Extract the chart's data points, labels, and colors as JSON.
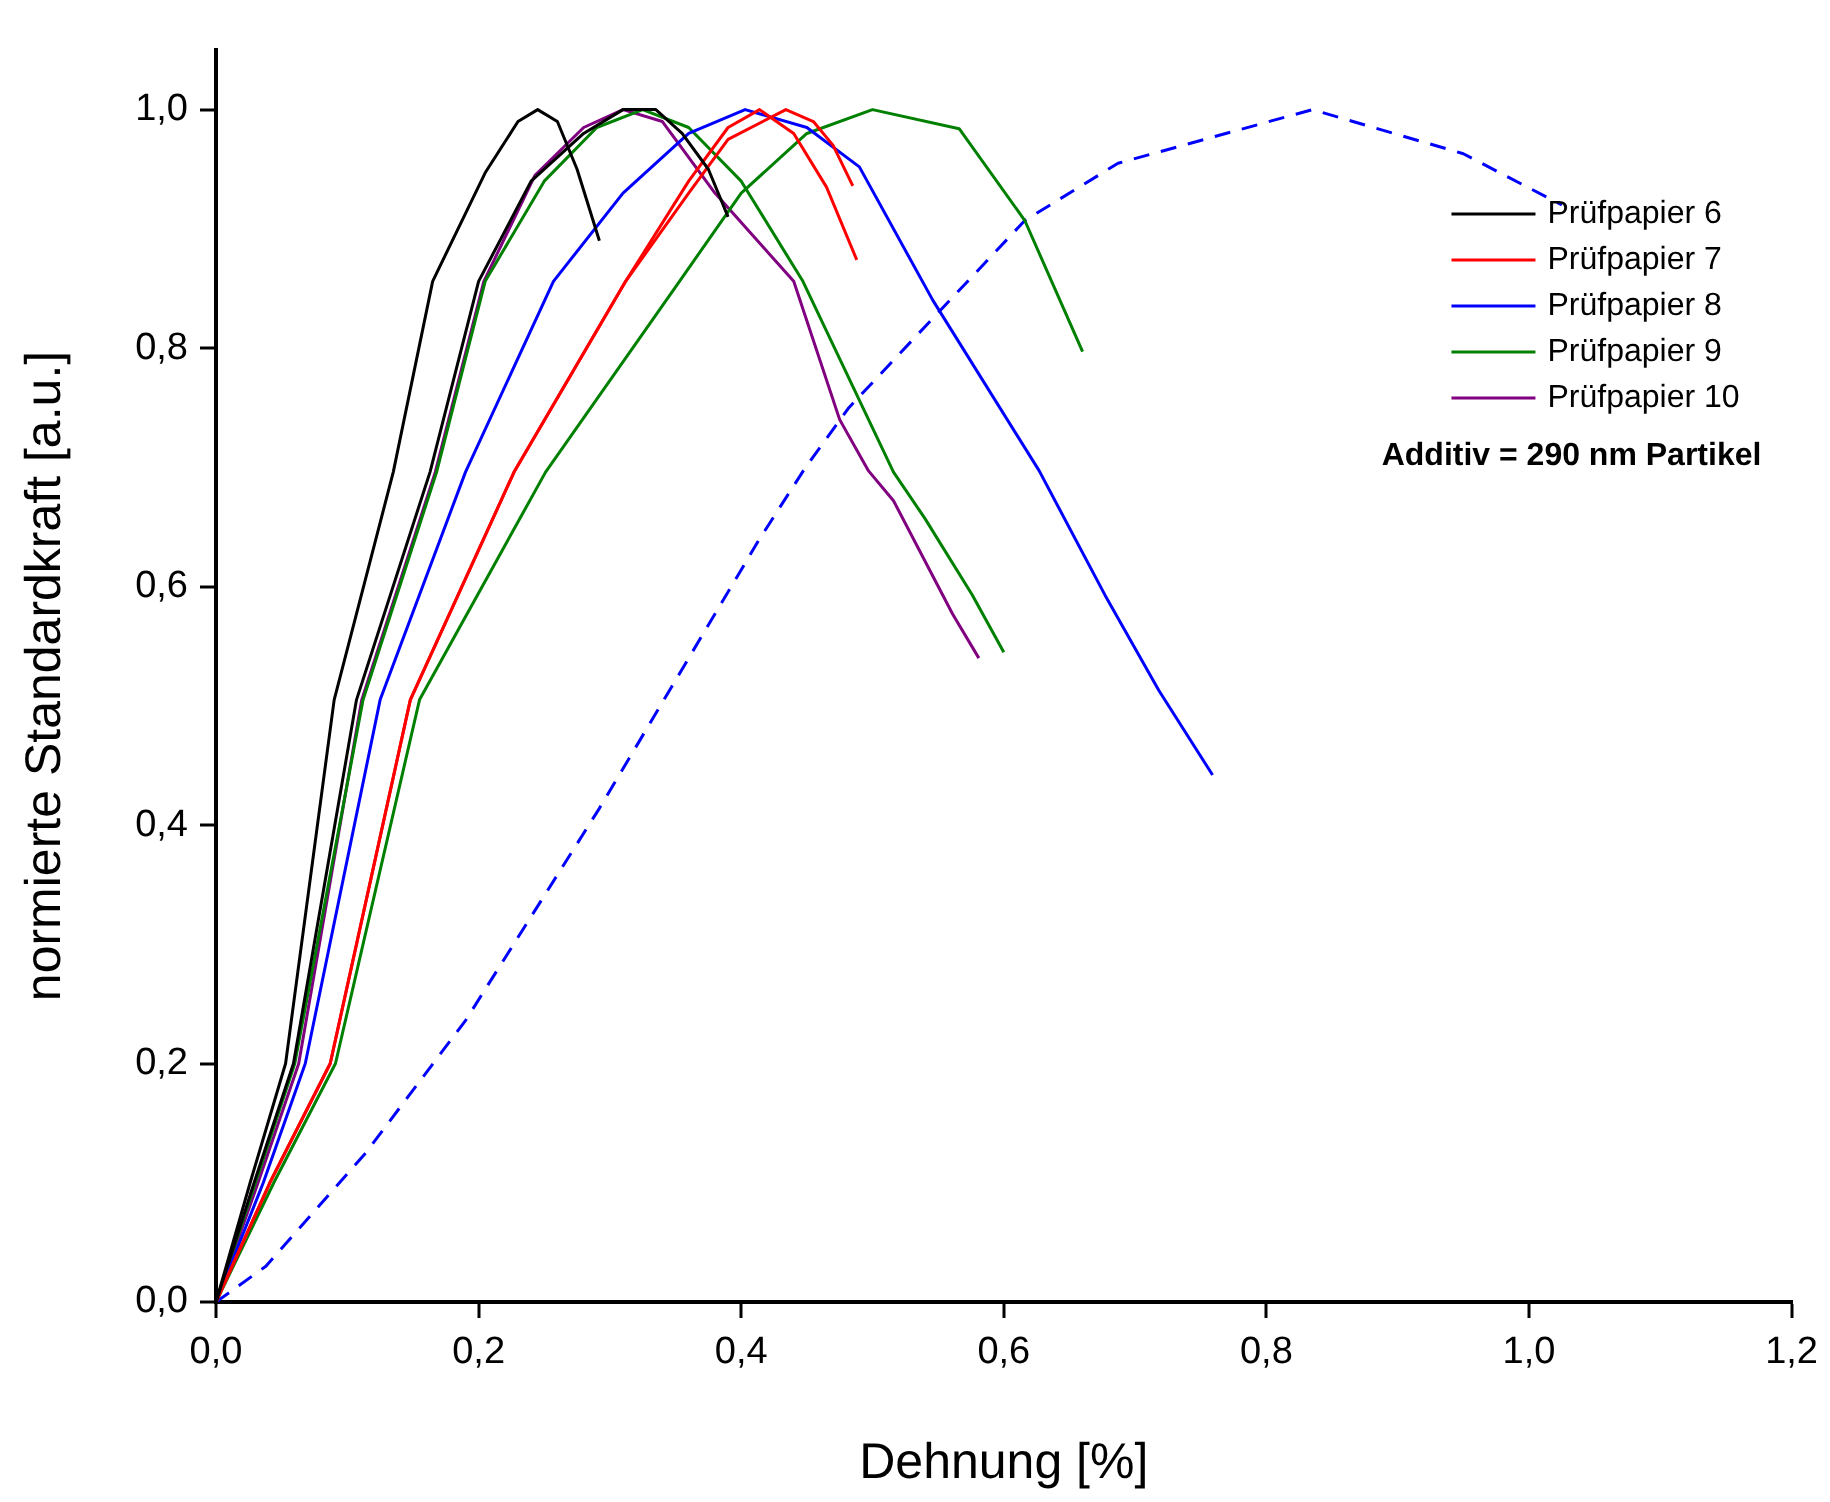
{
  "chart_data": {
    "type": "line",
    "xlabel": "Dehnung [%]",
    "ylabel": "normierte Standardkraft [a.u.]",
    "xlim": [
      0,
      1.2
    ],
    "ylim": [
      0,
      1.05
    ],
    "xticks": [
      {
        "value": 0,
        "label": "0,0"
      },
      {
        "value": 0.2,
        "label": "0,2"
      },
      {
        "value": 0.4,
        "label": "0,4"
      },
      {
        "value": 0.6,
        "label": "0,6"
      },
      {
        "value": 0.8,
        "label": "0,8"
      },
      {
        "value": 1.0,
        "label": "1,0"
      },
      {
        "value": 1.2,
        "label": "1,2"
      }
    ],
    "yticks": [
      {
        "value": 0,
        "label": "0,0"
      },
      {
        "value": 0.2,
        "label": "0,2"
      },
      {
        "value": 0.4,
        "label": "0,4"
      },
      {
        "value": 0.6,
        "label": "0,6"
      },
      {
        "value": 0.8,
        "label": "0,8"
      },
      {
        "value": 1.0,
        "label": "1,0"
      }
    ],
    "grid": false,
    "legend": "top right",
    "marker": "none",
    "line_style": "solid",
    "annotations": [
      "Additiv = 290 nm Partikel"
    ],
    "series": [
      {
        "name": "Prüfpapier 6",
        "color": "#000000",
        "x": [
          0,
          0.026,
          0.053,
          0.09,
          0.135,
          0.165,
          0.205,
          0.23,
          0.245,
          0.26,
          0.275,
          0.292
        ],
        "values": [
          0,
          0.1,
          0.2,
          0.505,
          0.696,
          0.856,
          0.947,
          0.99,
          1.0,
          0.99,
          0.95,
          0.89
        ]
      },
      {
        "color": "#000000",
        "x": [
          0,
          0.029,
          0.059,
          0.107,
          0.163,
          0.2,
          0.24,
          0.28,
          0.31,
          0.335,
          0.355,
          0.375,
          0.39
        ],
        "values": [
          0,
          0.1,
          0.2,
          0.505,
          0.696,
          0.856,
          0.94,
          0.98,
          1.0,
          1.0,
          0.98,
          0.95,
          0.91
        ]
      },
      {
        "name": "Prüfpapier 7",
        "color": "#ff0000",
        "x": [
          0,
          0.041,
          0.087,
          0.148,
          0.227,
          0.312,
          0.36,
          0.39,
          0.434,
          0.455,
          0.47,
          0.485
        ],
        "values": [
          0,
          0.1,
          0.2,
          0.505,
          0.696,
          0.856,
          0.93,
          0.975,
          1.0,
          0.99,
          0.97,
          0.936
        ]
      },
      {
        "color": "#ff0000",
        "x": [
          0,
          0.041,
          0.087,
          0.148,
          0.227,
          0.312,
          0.36,
          0.39,
          0.414,
          0.44,
          0.465,
          0.488
        ],
        "values": [
          0,
          0.1,
          0.2,
          0.505,
          0.696,
          0.856,
          0.94,
          0.985,
          1.0,
          0.98,
          0.935,
          0.874
        ]
      },
      {
        "name": "Prüfpapier 8",
        "color": "#0000ff",
        "x": [
          0,
          0.036,
          0.068,
          0.125,
          0.19,
          0.257,
          0.31,
          0.36,
          0.403,
          0.45,
          0.49,
          0.546,
          0.627,
          0.677,
          0.718,
          0.759
        ],
        "values": [
          0,
          0.1,
          0.2,
          0.505,
          0.696,
          0.856,
          0.93,
          0.98,
          1.0,
          0.985,
          0.952,
          0.84,
          0.697,
          0.593,
          0.513,
          0.442
        ]
      },
      {
        "name": "Prüfpapier 9",
        "color": "#008000",
        "x": [
          0,
          0.03,
          0.06,
          0.112,
          0.168,
          0.205,
          0.25,
          0.29,
          0.325,
          0.36,
          0.4,
          0.447,
          0.516,
          0.54,
          0.576,
          0.6
        ],
        "values": [
          0,
          0.1,
          0.2,
          0.505,
          0.696,
          0.856,
          0.94,
          0.985,
          1.0,
          0.985,
          0.94,
          0.856,
          0.696,
          0.657,
          0.593,
          0.545
        ]
      },
      {
        "color": "#008000",
        "x": [
          0,
          0.044,
          0.091,
          0.155,
          0.251,
          0.353,
          0.4,
          0.45,
          0.5,
          0.566,
          0.616,
          0.66
        ],
        "values": [
          0,
          0.1,
          0.2,
          0.505,
          0.696,
          0.856,
          0.93,
          0.98,
          1.0,
          0.984,
          0.907,
          0.797
        ]
      },
      {
        "name": "Prüfpapier 10",
        "color": "#800080",
        "x": [
          0,
          0.032,
          0.063,
          0.111,
          0.167,
          0.204,
          0.243,
          0.28,
          0.31,
          0.34,
          0.38,
          0.44,
          0.475,
          0.497,
          0.516,
          0.561,
          0.581
        ],
        "values": [
          0,
          0.1,
          0.2,
          0.505,
          0.696,
          0.856,
          0.945,
          0.985,
          1.0,
          0.99,
          0.93,
          0.856,
          0.74,
          0.697,
          0.672,
          0.577,
          0.54
        ]
      },
      {
        "color": "#0000ff",
        "line_style": "dashed",
        "x": [
          0,
          0.038,
          0.114,
          0.19,
          0.292,
          0.414,
          0.449,
          0.482,
          0.616,
          0.687,
          0.835,
          0.95,
          1.025
        ],
        "values": [
          0,
          0.03,
          0.125,
          0.236,
          0.414,
          0.64,
          0.7,
          0.75,
          0.907,
          0.955,
          1.0,
          0.963,
          0.92
        ]
      }
    ]
  }
}
